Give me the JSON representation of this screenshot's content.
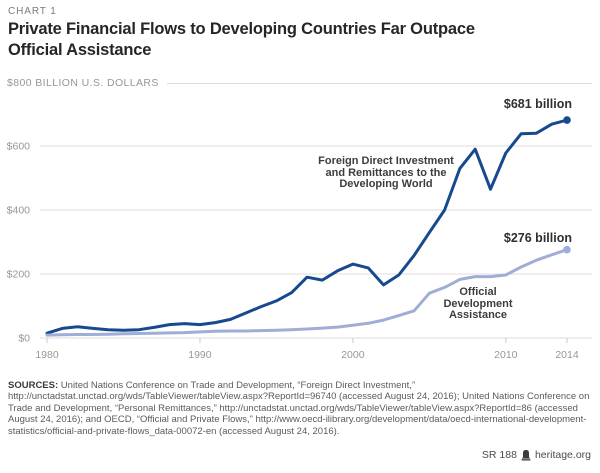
{
  "header": {
    "kicker": "CHART 1",
    "title_lines": [
      "Private Financial Flows to Developing Countries Far Outpace",
      "Official Assistance"
    ]
  },
  "chart_data": {
    "type": "line",
    "title": "Private Financial Flows to Developing Countries Far Outpace Official Assistance",
    "y_axis_top_label": "$800 BILLION U.S. DOLLARS",
    "xlabel": "",
    "ylabel": "BILLION U.S. DOLLARS",
    "xlim": [
      1980,
      2014
    ],
    "ylim": [
      0,
      800
    ],
    "grid": true,
    "x_ticks": [
      {
        "value": 1980,
        "label": "1980"
      },
      {
        "value": 1990,
        "label": "1990"
      },
      {
        "value": 2000,
        "label": "2000"
      },
      {
        "value": 2010,
        "label": "2010"
      },
      {
        "value": 2014,
        "label": "2014"
      }
    ],
    "y_ticks": [
      {
        "value": 600,
        "label": "$600"
      },
      {
        "value": 400,
        "label": "$400"
      },
      {
        "value": 200,
        "label": "$200"
      },
      {
        "value": 0,
        "label": "$0"
      }
    ],
    "x": [
      1980,
      1981,
      1982,
      1983,
      1984,
      1985,
      1986,
      1987,
      1988,
      1989,
      1990,
      1991,
      1992,
      1993,
      1994,
      1995,
      1996,
      1997,
      1998,
      1999,
      2000,
      2001,
      2002,
      2003,
      2004,
      2005,
      2006,
      2007,
      2008,
      2009,
      2010,
      2011,
      2012,
      2013,
      2014
    ],
    "series": [
      {
        "name": "Foreign Direct Investment and Remittances to the Developing World",
        "label_lines": [
          "Foreign Direct Investment",
          "and Remittances to the",
          "Developing World"
        ],
        "end_label": "$681 billion",
        "end_value": 681,
        "color": "#17498f",
        "values": [
          15,
          30,
          35,
          30,
          26,
          24,
          26,
          33,
          42,
          45,
          42,
          48,
          58,
          78,
          98,
          116,
          142,
          190,
          181,
          210,
          231,
          219,
          166,
          197,
          258,
          330,
          400,
          530,
          590,
          465,
          578,
          638,
          640,
          668,
          681
        ]
      },
      {
        "name": "Official Development Assistance",
        "label_lines": [
          "Official",
          "Development",
          "Assistance"
        ],
        "end_label": "$276 billion",
        "end_value": 276,
        "color": "#a0add6",
        "values": [
          9,
          10,
          11,
          11,
          12,
          13,
          14,
          15,
          16,
          17,
          19,
          21,
          22,
          22,
          23,
          24,
          26,
          28,
          31,
          34,
          40,
          46,
          56,
          70,
          85,
          140,
          158,
          183,
          192,
          192,
          197,
          222,
          243,
          260,
          276
        ]
      }
    ],
    "legend_position": "inline-annotations"
  },
  "sources": {
    "prefix": "SOURCES:",
    "text": " United Nations Conference on Trade and Development, “Foreign Direct Investment,” http://unctadstat.unctad.org/wds/TableViewer/tableView.aspx?ReportId=96740 (accessed August 24, 2016); United Nations Conference on Trade and Development, “Personal Remittances,” http://unctadstat.unctad.org/wds/TableViewer/tableView.aspx?ReportId=86 (accessed August 24, 2016); and OECD, “Official and Private Flows,” http://www.oecd-ilibrary.org/development/data/oecd-international-development-statistics/official-and-private-flows_data-00072-en (accessed August 24, 2016)."
  },
  "footer": {
    "report": "SR 188",
    "site": "heritage.org"
  }
}
